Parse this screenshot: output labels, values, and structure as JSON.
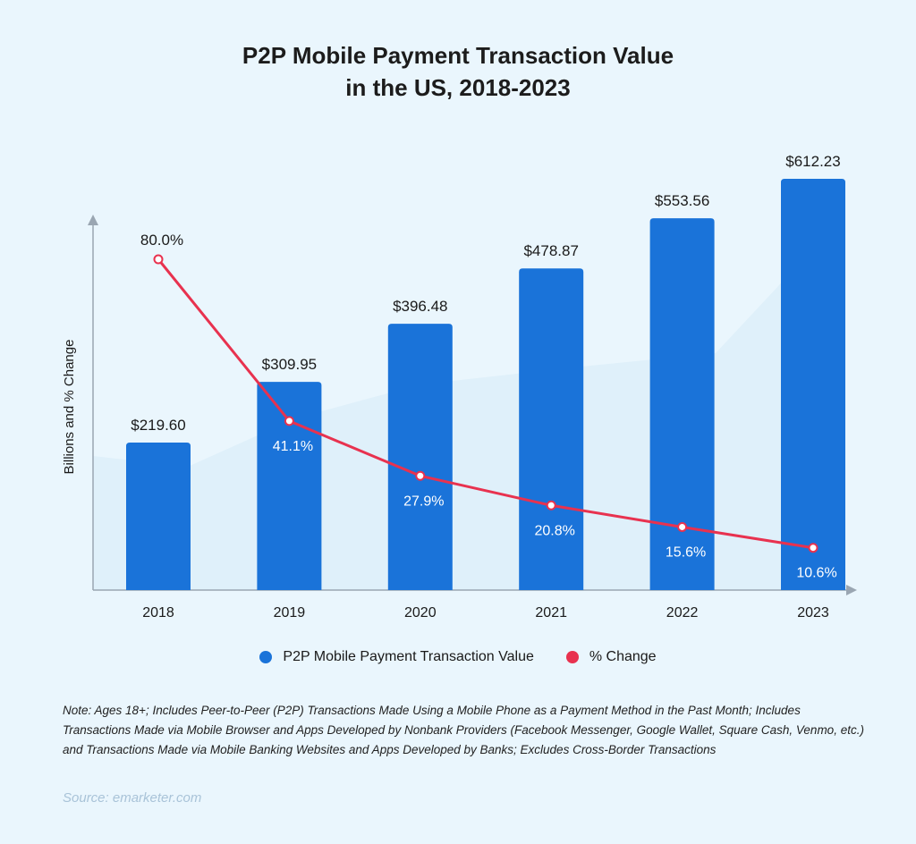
{
  "chart_data": {
    "type": "bar",
    "title_lines": [
      "P2P Mobile Payment Transaction Value",
      "in the US, 2018-2023"
    ],
    "ylabel": "Billions and % Change",
    "categories": [
      "2018",
      "2019",
      "2020",
      "2021",
      "2022",
      "2023"
    ],
    "series": [
      {
        "name": "P2P Mobile Payment Transaction Value",
        "type": "bar",
        "values": [
          219.6,
          309.95,
          396.48,
          478.87,
          553.56,
          612.23
        ],
        "labels": [
          "$219.60",
          "$309.95",
          "$396.48",
          "$478.87",
          "$553.56",
          "$612.23"
        ],
        "color": "#1a73d9"
      },
      {
        "name": "% Change",
        "type": "line",
        "values": [
          80.0,
          41.1,
          27.9,
          20.8,
          15.6,
          10.6
        ],
        "labels": [
          "80.0%",
          "41.1%",
          "27.9%",
          "20.8%",
          "15.6%",
          "10.6%"
        ],
        "color": "#e8324f"
      }
    ],
    "legend_position": "bottom"
  },
  "legend": {
    "items": [
      {
        "label": "P2P Mobile Payment Transaction Value",
        "color": "#1a73d9"
      },
      {
        "label": "% Change",
        "color": "#e8324f"
      }
    ]
  },
  "note": "Note: Ages 18+; Includes Peer-to-Peer (P2P) Transactions Made Using a Mobile Phone as a Payment Method in the Past Month; Includes Transactions Made via Mobile Browser and Apps Developed by Nonbank Providers (Facebook Messenger, Google Wallet, Square Cash, Venmo, etc.) and Transactions Made via Mobile Banking Websites and Apps Developed by Banks; Excludes Cross-Border Transactions",
  "source": "Source: emarketer.com"
}
